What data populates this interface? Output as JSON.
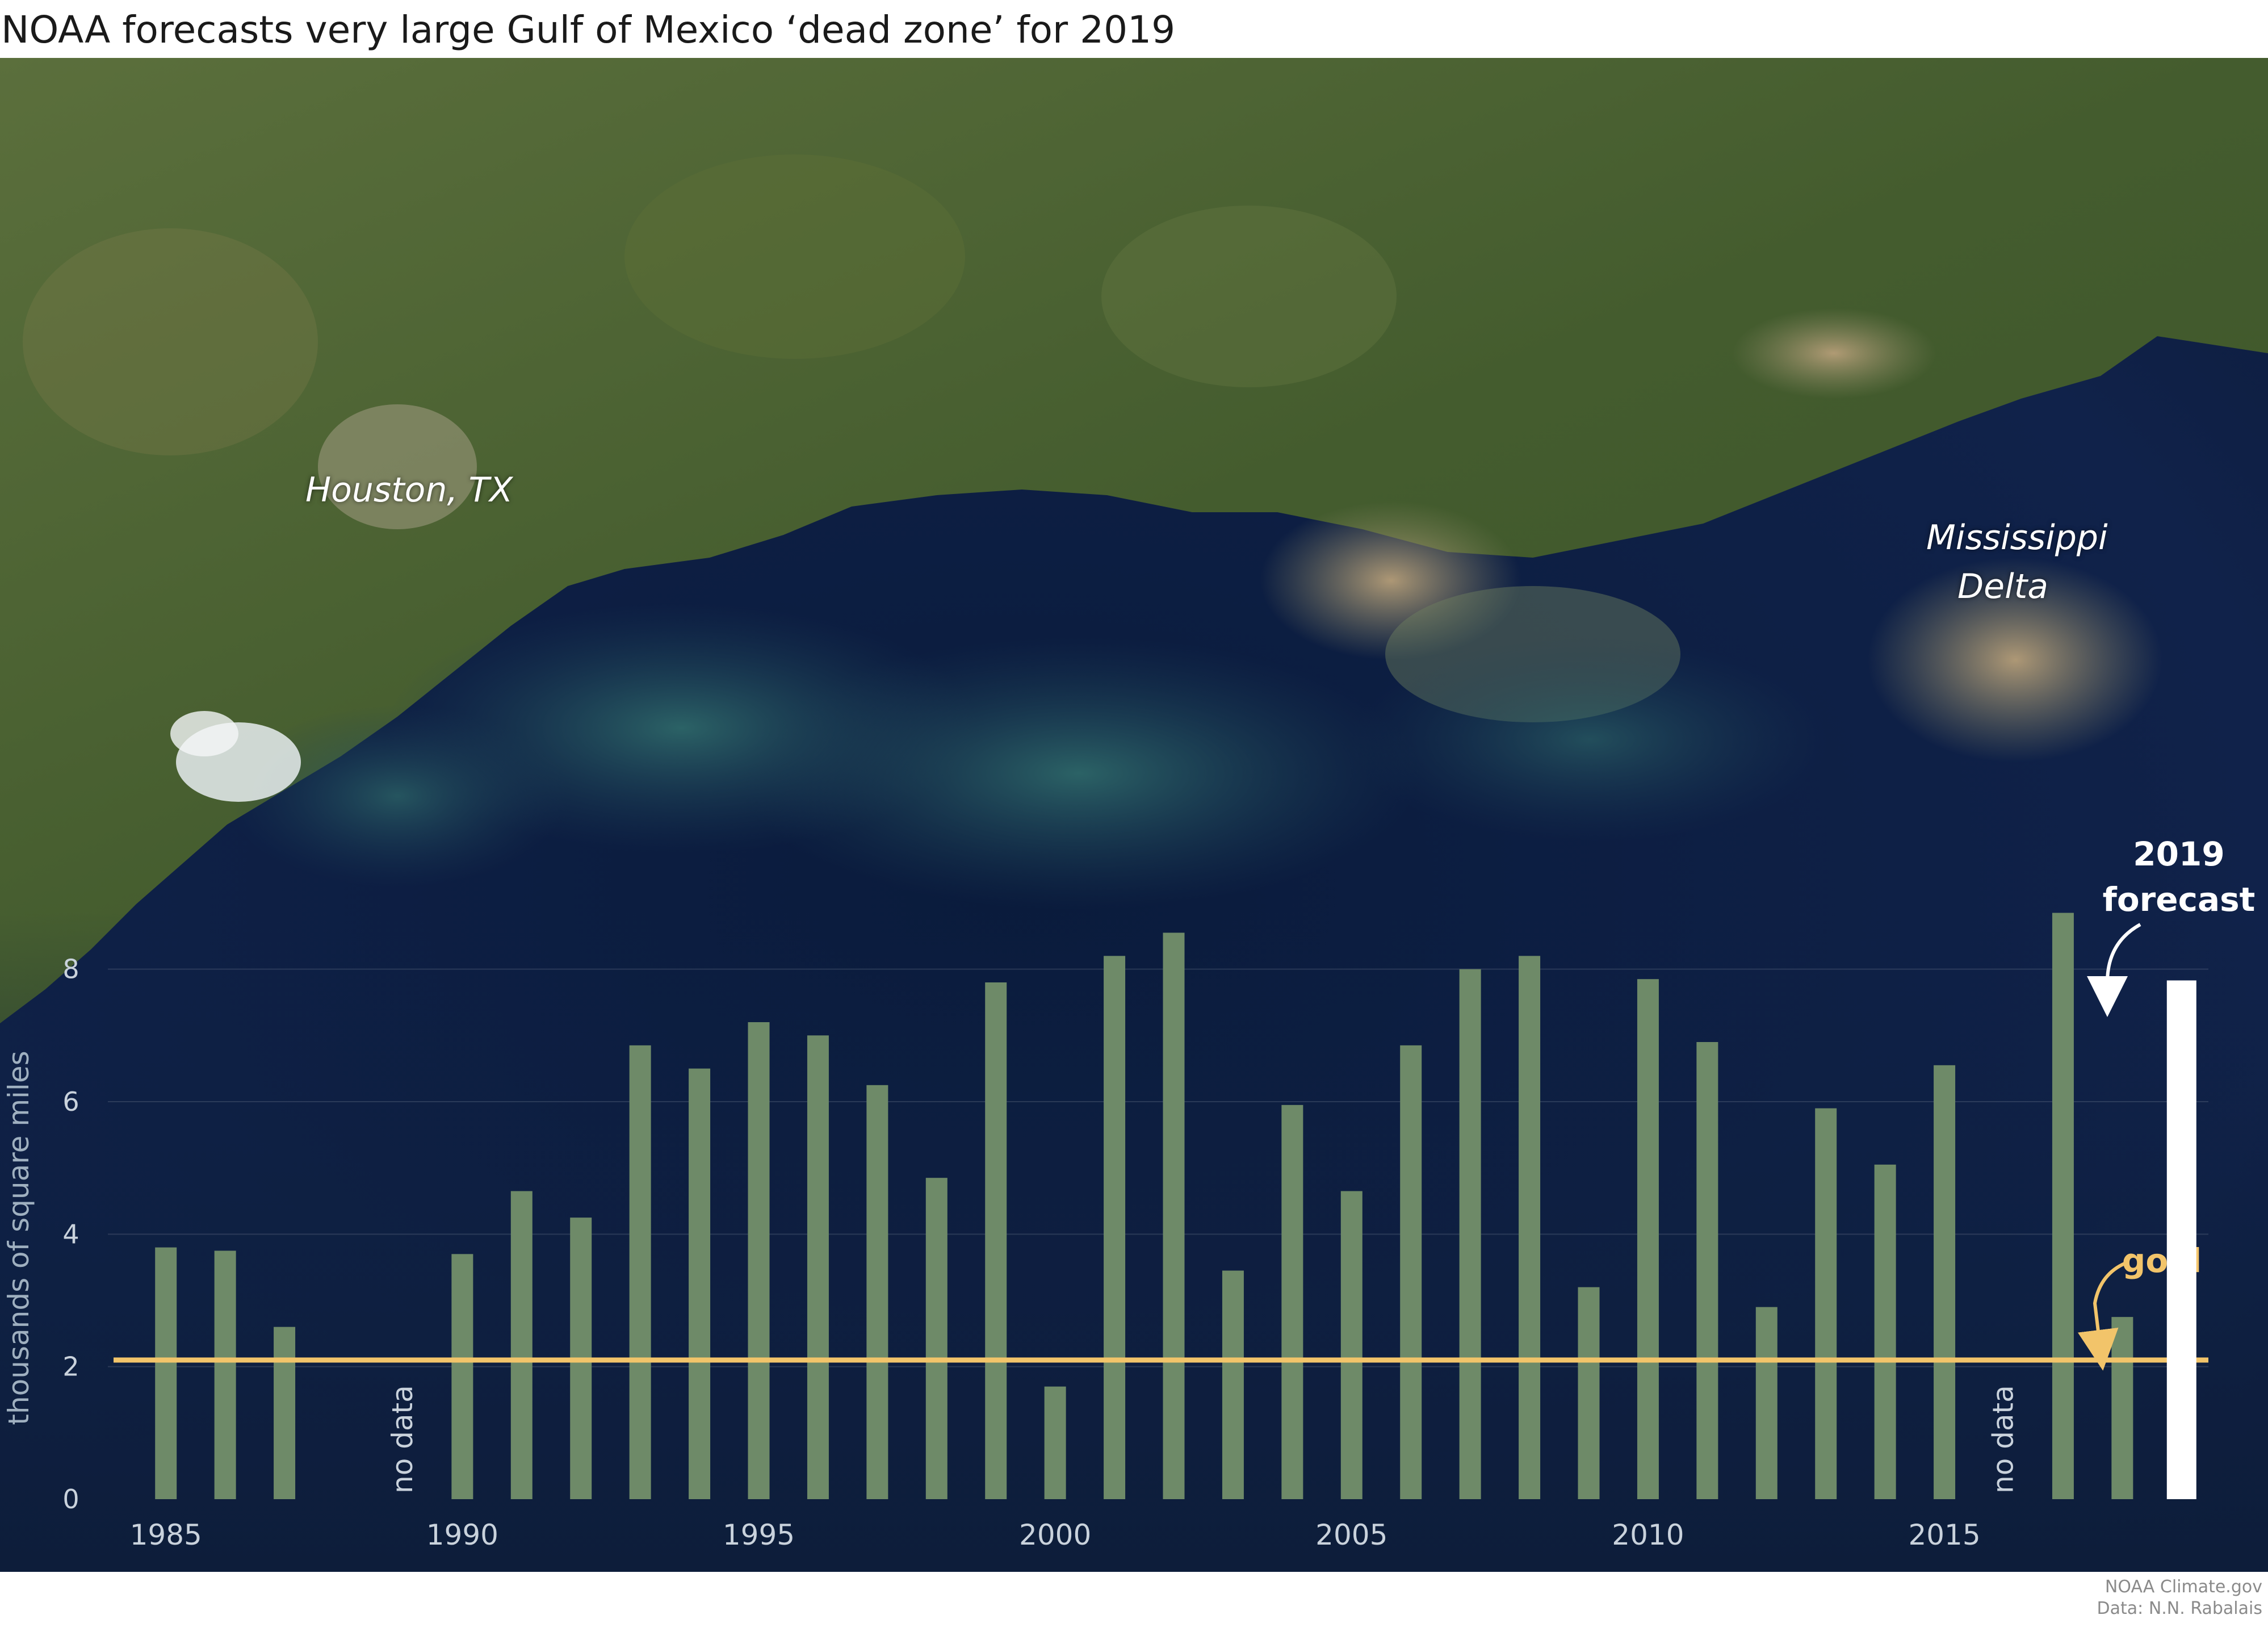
{
  "page": {
    "title": "NOAA forecasts very large Gulf of Mexico ‘dead zone’ for 2019",
    "credit_line1": "NOAA Climate.gov",
    "credit_line2": "Data: N.N. Rabalais"
  },
  "map_labels": {
    "houston": "Houston, TX",
    "delta_line1": "Mississippi",
    "delta_line2": "Delta"
  },
  "colors": {
    "bar": "#6e8a68",
    "forecast_bar": "#ffffff",
    "goal_line": "#f2c46a",
    "axis_text": "#c9d2dc",
    "ocean": "#0f2142",
    "land": "#4a6338"
  },
  "chart_data": {
    "type": "bar",
    "title": "NOAA forecasts very large Gulf of Mexico ‘dead zone’ for 2019",
    "ylabel": "thousands of square miles",
    "xlabel": "",
    "ylim": [
      0,
      9
    ],
    "xlim": [
      1984.5,
      2019.5
    ],
    "yticks": [
      "0",
      "2",
      "4",
      "6",
      "8"
    ],
    "xticks": [
      "1985",
      "1990",
      "1995",
      "2000",
      "2005",
      "2010",
      "2015"
    ],
    "series": [
      {
        "x": [
          1985,
          1986,
          1987,
          1990,
          1991,
          1992,
          1993,
          1994,
          1995,
          1996,
          1997,
          1998,
          1999,
          2000,
          2001,
          2002,
          2003,
          2004,
          2005,
          2006,
          2007,
          2008,
          2009,
          2010,
          2011,
          2012,
          2013,
          2014,
          2015,
          2017,
          2018
        ],
        "values": [
          3.8,
          3.75,
          2.6,
          3.7,
          4.65,
          4.25,
          6.85,
          6.5,
          7.2,
          7.0,
          6.25,
          4.85,
          7.8,
          1.7,
          8.2,
          8.55,
          3.45,
          5.95,
          4.65,
          6.85,
          8.0,
          8.2,
          3.2,
          7.85,
          6.9,
          2.9,
          5.9,
          5.05,
          6.55,
          8.85,
          2.75
        ]
      }
    ],
    "forecast": {
      "year": 2019,
      "value": 7.83,
      "label_line1": "2019",
      "label_line2": "forecast"
    },
    "goal": {
      "value": 2.1,
      "label": "goal"
    },
    "no_data_years": [
      1989,
      2016
    ],
    "no_data_label": "no data",
    "grid": true
  }
}
